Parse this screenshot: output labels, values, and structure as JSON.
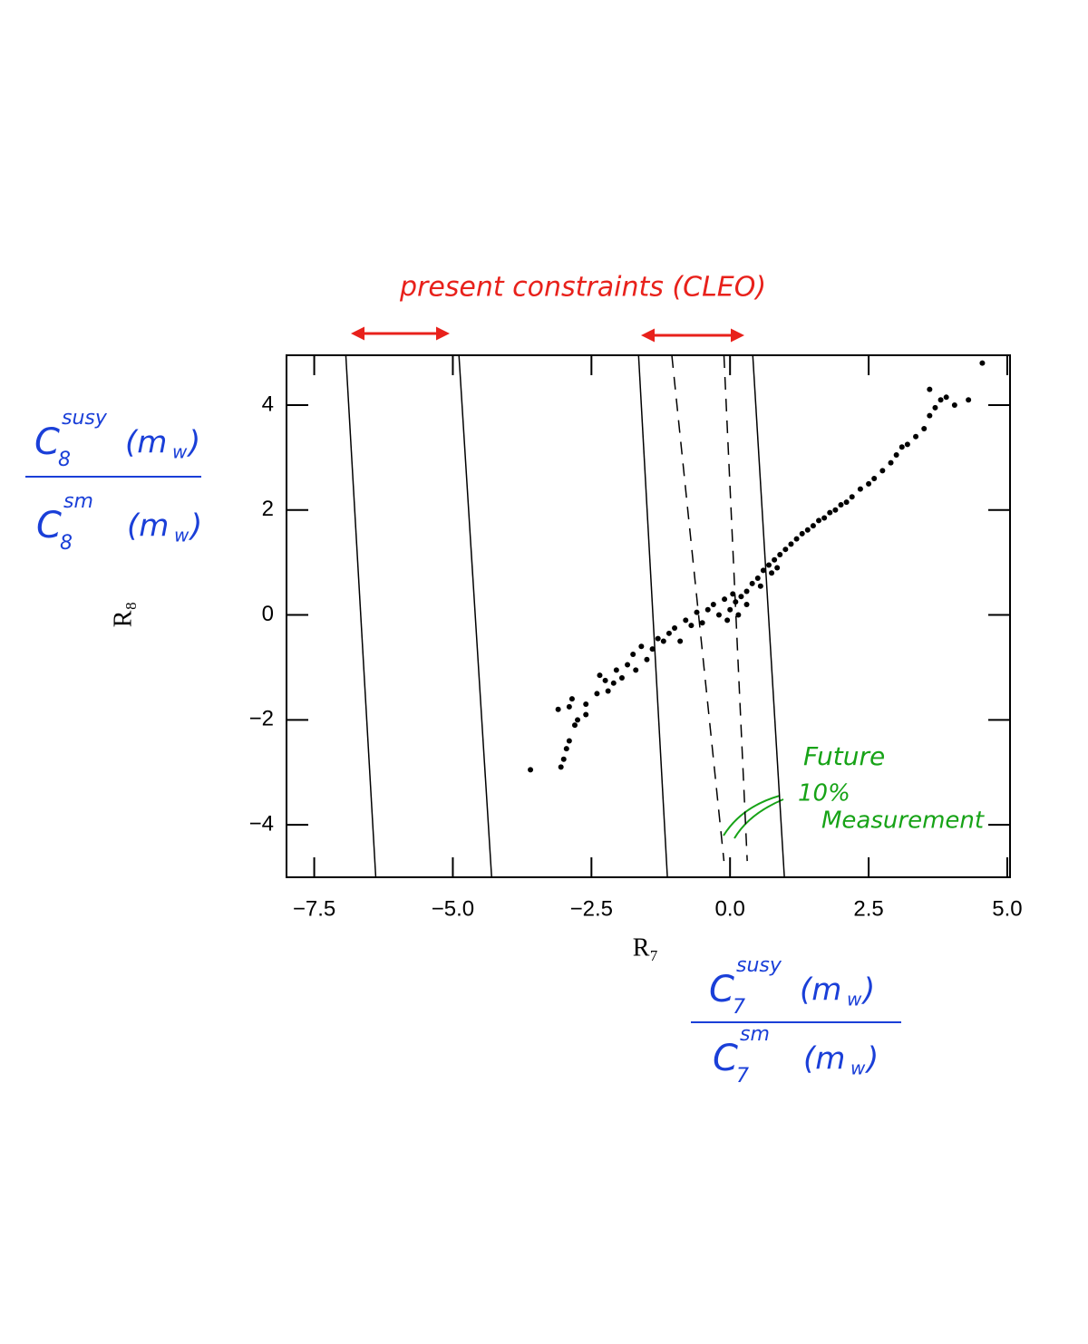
{
  "chart_data": {
    "type": "scatter",
    "title": "present constraints (CLEO)",
    "x_label": "R₇",
    "y_label": "R₈",
    "xlim": [
      -8.0,
      5.05
    ],
    "ylim": [
      -5.0,
      4.95
    ],
    "xticks": [
      {
        "value": -7.5,
        "label": "−7.5"
      },
      {
        "value": -5.0,
        "label": "−5.0"
      },
      {
        "value": -2.5,
        "label": "−2.5"
      },
      {
        "value": 0.0,
        "label": "0.0"
      },
      {
        "value": 2.5,
        "label": "2.5"
      },
      {
        "value": 5.0,
        "label": "5.0"
      }
    ],
    "yticks": [
      {
        "value": -4,
        "label": "−4"
      },
      {
        "value": -2,
        "label": "−2"
      },
      0,
      2,
      4
    ],
    "color": "#000000",
    "x": [
      -3.6,
      -3.05,
      -3.0,
      -2.95,
      -2.9,
      -3.1,
      -2.9,
      -2.85,
      -2.8,
      -2.75,
      -2.6,
      -2.6,
      -2.4,
      -2.35,
      -2.25,
      -2.2,
      -2.1,
      -2.05,
      -1.95,
      -1.85,
      -1.75,
      -1.7,
      -1.6,
      -1.5,
      -1.4,
      -1.3,
      -1.2,
      -1.1,
      -1.0,
      -0.9,
      -0.8,
      -0.7,
      -0.6,
      -0.5,
      -0.4,
      -0.3,
      -0.2,
      -0.1,
      0.0,
      0.05,
      0.1,
      0.2,
      0.3,
      0.4,
      0.5,
      0.6,
      0.7,
      0.8,
      0.9,
      1.0,
      1.1,
      1.2,
      1.3,
      1.4,
      1.5,
      1.6,
      1.7,
      1.8,
      1.9,
      2.0,
      2.1,
      2.2,
      2.35,
      2.5,
      2.6,
      2.75,
      2.9,
      3.0,
      3.1,
      3.2,
      3.35,
      3.5,
      3.6,
      3.7,
      3.6,
      3.8,
      3.9,
      4.05,
      4.3,
      4.55,
      0.15,
      -0.05,
      0.3,
      0.55,
      0.75,
      0.85
    ],
    "values": [
      -2.95,
      -2.9,
      -2.75,
      -2.55,
      -2.4,
      -1.8,
      -1.75,
      -1.6,
      -2.1,
      -2.0,
      -1.9,
      -1.7,
      -1.5,
      -1.15,
      -1.25,
      -1.45,
      -1.3,
      -1.05,
      -1.2,
      -0.95,
      -0.75,
      -1.05,
      -0.6,
      -0.85,
      -0.65,
      -0.45,
      -0.5,
      -0.35,
      -0.25,
      -0.5,
      -0.1,
      -0.2,
      0.05,
      -0.15,
      0.1,
      0.2,
      0.0,
      0.3,
      0.1,
      0.4,
      0.25,
      0.35,
      0.45,
      0.6,
      0.7,
      0.85,
      0.95,
      1.05,
      1.15,
      1.25,
      1.35,
      1.45,
      1.55,
      1.62,
      1.7,
      1.8,
      1.85,
      1.95,
      2.0,
      2.1,
      2.15,
      2.25,
      2.4,
      2.5,
      2.6,
      2.75,
      2.9,
      3.05,
      3.2,
      3.25,
      3.4,
      3.55,
      3.8,
      3.95,
      4.3,
      4.1,
      4.15,
      4.0,
      4.1,
      4.8,
      0.0,
      -0.1,
      0.2,
      0.55,
      0.8,
      0.9
    ],
    "lines": [
      {
        "x": [
          -6.93,
          -6.39
        ],
        "values": [
          4.95,
          -5.0
        ],
        "dash": false
      },
      {
        "x": [
          -4.89,
          -4.3
        ],
        "values": [
          4.95,
          -5.0
        ],
        "dash": false
      },
      {
        "x": [
          -1.65,
          -1.13
        ],
        "values": [
          4.95,
          -5.0
        ],
        "dash": false
      },
      {
        "x": [
          0.41,
          0.98
        ],
        "values": [
          4.95,
          -5.0
        ],
        "dash": false
      },
      {
        "x": [
          -1.05,
          -0.11
        ],
        "values": [
          4.95,
          -4.69
        ],
        "dash": true
      },
      {
        "x": [
          -0.11,
          0.31
        ],
        "values": [
          4.95,
          -4.69
        ],
        "dash": true
      }
    ],
    "y_fraction": {
      "numerator": {
        "base": "C",
        "sup": "susy",
        "sub": "8",
        "arg": "(m",
        "argsub": "w",
        "close": ")"
      },
      "denominator": {
        "base": "C",
        "sup": "sm",
        "sub": "8",
        "arg": "(m",
        "argsub": "w",
        "close": ")"
      }
    },
    "x_fraction": {
      "numerator": {
        "base": "C",
        "sup": "susy",
        "sub": "7",
        "arg": "(m",
        "argsub": "w",
        "close": ")"
      },
      "denominator": {
        "base": "C",
        "sup": "sm",
        "sub": "7",
        "arg": "(m",
        "argsub": "w",
        "close": ")"
      }
    },
    "future_note": [
      "Future",
      "10%",
      "Measurement"
    ]
  }
}
